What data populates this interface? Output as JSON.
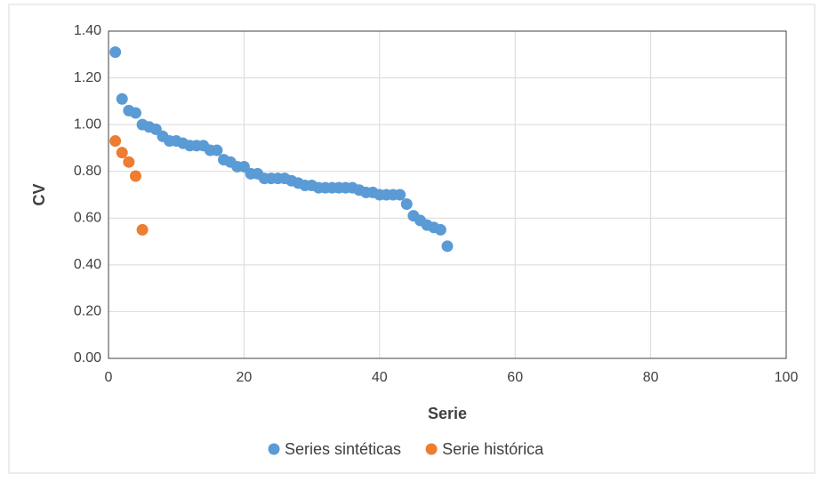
{
  "chart_data": {
    "type": "scatter",
    "x_label": "Serie",
    "y_label": "CV",
    "xlim": [
      0,
      100
    ],
    "xticks": [
      0,
      20,
      40,
      60,
      80,
      100
    ],
    "ylim": [
      0,
      1.4
    ],
    "yticks": [
      {
        "value": 0,
        "label": "0.00"
      },
      {
        "value": 0.2,
        "label": "0.20"
      },
      {
        "value": 0.4,
        "label": "0.40"
      },
      {
        "value": 0.6,
        "label": "0.60"
      },
      {
        "value": 0.8,
        "label": "0.80"
      },
      {
        "value": 1.0,
        "label": "1.00"
      },
      {
        "value": 1.2,
        "label": "1.20"
      },
      {
        "value": 1.4,
        "label": "1.40"
      }
    ],
    "grid": true,
    "legend": "bottom",
    "series": [
      {
        "name": "Series sintéticas",
        "color": "#5b9bd5",
        "x": [
          1,
          2,
          3,
          4,
          5,
          6,
          7,
          8,
          9,
          10,
          11,
          12,
          13,
          14,
          15,
          16,
          17,
          18,
          19,
          20,
          21,
          22,
          23,
          24,
          25,
          26,
          27,
          28,
          29,
          30,
          31,
          32,
          33,
          34,
          35,
          36,
          37,
          38,
          39,
          40,
          41,
          42,
          43,
          44,
          45,
          46,
          47,
          48,
          49,
          50
        ],
        "values": [
          1.31,
          1.11,
          1.06,
          1.05,
          1.0,
          0.99,
          0.98,
          0.95,
          0.93,
          0.93,
          0.92,
          0.91,
          0.91,
          0.91,
          0.89,
          0.89,
          0.85,
          0.84,
          0.82,
          0.82,
          0.79,
          0.79,
          0.77,
          0.77,
          0.77,
          0.77,
          0.76,
          0.75,
          0.74,
          0.74,
          0.73,
          0.73,
          0.73,
          0.73,
          0.73,
          0.73,
          0.72,
          0.71,
          0.71,
          0.7,
          0.7,
          0.7,
          0.7,
          0.66,
          0.61,
          0.59,
          0.57,
          0.56,
          0.55,
          0.48
        ]
      },
      {
        "name": "Serie histórica",
        "color": "#ed7d31",
        "x": [
          1,
          2,
          3,
          4,
          5
        ],
        "values": [
          0.93,
          0.88,
          0.84,
          0.78,
          0.55
        ]
      }
    ]
  }
}
